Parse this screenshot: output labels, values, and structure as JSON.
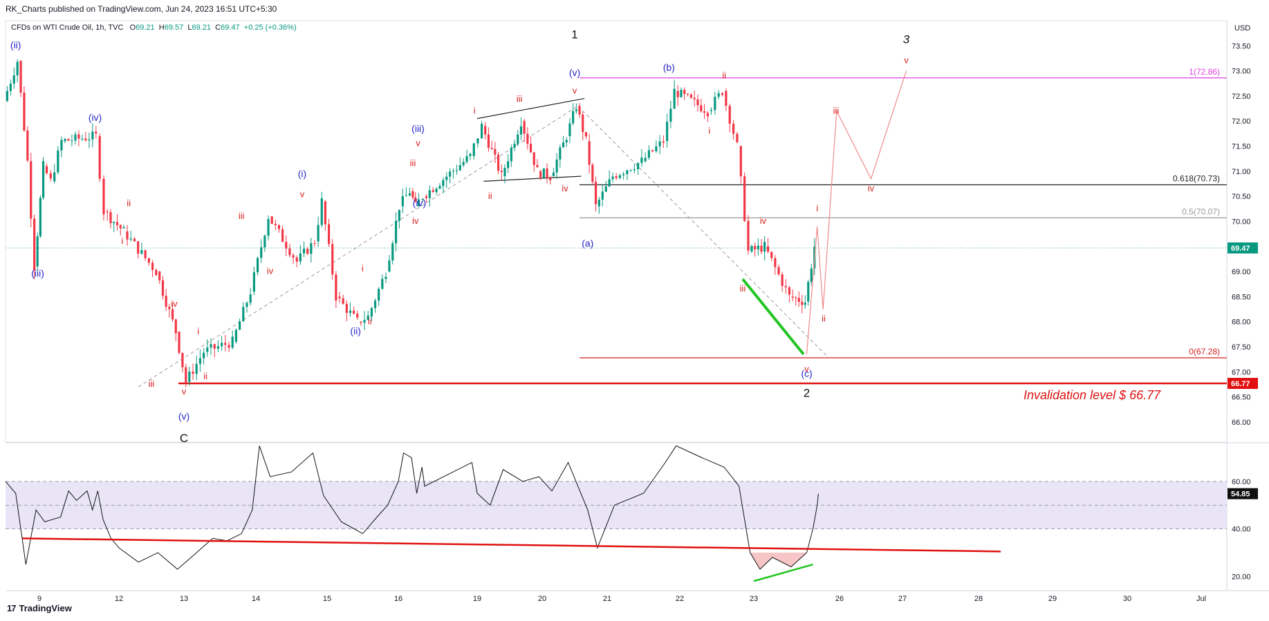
{
  "header": {
    "published": "RK_Charts published on TradingView.com, Jun 24, 2023 16:51 UTC+5:30",
    "symbol": "CFDs on WTI Crude Oil, 1h, TVC",
    "o_label": "O",
    "o_value": "69.21",
    "h_label": "H",
    "h_value": "69.57",
    "l_label": "L",
    "l_value": "69.21",
    "c_label": "C",
    "c_value": "69.47",
    "change": "+0.25 (+0.36%)"
  },
  "footer": {
    "brand": "TradingView",
    "logo_glyph": "17"
  },
  "colors": {
    "up": "#089981",
    "down": "#f23645",
    "wave_blue": "#2424c8",
    "wave_red": "#d81e1e",
    "magenta": "#e040e0",
    "rsi_band": "#e9e5f7",
    "green_line": "#22c422"
  },
  "chart_data": [
    {
      "type": "candlestick",
      "title": "CFDs on WTI Crude Oil, 1h, TVC",
      "currency": "USD",
      "ylim": [
        65.6,
        74.0
      ],
      "y_ticks": [
        "66.00",
        "66.50",
        "67.00",
        "67.50",
        "68.00",
        "68.50",
        "69.00",
        "69.50",
        "70.00",
        "70.50",
        "71.00",
        "71.50",
        "72.00",
        "72.50",
        "73.00",
        "73.50"
      ],
      "x_ticks": [
        "9",
        "12",
        "13",
        "14",
        "15",
        "16",
        "19",
        "20",
        "21",
        "22",
        "23",
        "26",
        "27",
        "28",
        "29",
        "30",
        "Jul"
      ],
      "price_path": [
        [
          8,
          72.4
        ],
        [
          8.4,
          73.2
        ],
        [
          8.7,
          71.2
        ],
        [
          8.9,
          69.1
        ],
        [
          9.2,
          71.1
        ],
        [
          9.5,
          70.8
        ],
        [
          9.9,
          71.6
        ],
        [
          11.2,
          71.7
        ],
        [
          11.5,
          70.2
        ],
        [
          12.1,
          69.8
        ],
        [
          12.6,
          69.0
        ],
        [
          12.9,
          67.8
        ],
        [
          13.05,
          66.8
        ],
        [
          13.3,
          67.4
        ],
        [
          13.7,
          67.6
        ],
        [
          13.95,
          68.6
        ],
        [
          14.2,
          70.1
        ],
        [
          14.6,
          69.2
        ],
        [
          14.85,
          69.6
        ],
        [
          14.95,
          70.4
        ],
        [
          15.15,
          68.5
        ],
        [
          15.45,
          68.0
        ],
        [
          15.6,
          68.1
        ],
        [
          15.85,
          69.0
        ],
        [
          16.1,
          70.3
        ],
        [
          16.5,
          70.6
        ],
        [
          16.7,
          70.3
        ],
        [
          17.0,
          70.5
        ],
        [
          18.8,
          71.3
        ],
        [
          19.1,
          71.9
        ],
        [
          19.4,
          70.9
        ],
        [
          19.7,
          72.0
        ],
        [
          19.95,
          71.0
        ],
        [
          20.15,
          70.9
        ],
        [
          20.4,
          71.7
        ],
        [
          20.55,
          72.3
        ],
        [
          20.7,
          71.6
        ],
        [
          20.85,
          70.3
        ],
        [
          21.1,
          70.9
        ],
        [
          21.5,
          71.2
        ],
        [
          21.8,
          71.6
        ],
        [
          21.95,
          72.6
        ],
        [
          22.4,
          72.2
        ],
        [
          22.6,
          72.6
        ],
        [
          22.8,
          71.5
        ],
        [
          22.95,
          69.4
        ],
        [
          23.2,
          69.5
        ],
        [
          23.6,
          68.5
        ],
        [
          23.85,
          68.4
        ],
        [
          24.0,
          69.5
        ]
      ],
      "levels": [
        {
          "label": "1(72.86)",
          "price": 72.86,
          "color": "#e040e0"
        },
        {
          "label": "0.618(70.73)",
          "price": 70.73,
          "color": "#222222"
        },
        {
          "label": "0.5(70.07)",
          "price": 70.07,
          "color": "#999999"
        },
        {
          "label": "0(67.28)",
          "price": 67.28,
          "color": "#d81e1e"
        },
        {
          "label": "66.77",
          "price": 66.77,
          "color": "#e01010"
        }
      ],
      "last_price": "69.47",
      "annotations": [
        {
          "text": "Invalidation level $ 66.77",
          "price": 66.55,
          "color": "#e01010"
        }
      ],
      "wave_labels": [
        {
          "text": "(ii)",
          "x": 8.3,
          "price": 73.45,
          "color": "blue"
        },
        {
          "text": "(iii)",
          "x": 8.95,
          "price": 68.9,
          "color": "blue"
        },
        {
          "text": "(iv)",
          "x": 11.1,
          "price": 72.0,
          "color": "blue"
        },
        {
          "text": "ii",
          "x": 12.15,
          "price": 70.3,
          "color": "red"
        },
        {
          "text": "i",
          "x": 12.05,
          "price": 69.55,
          "color": "red"
        },
        {
          "text": "iv",
          "x": 12.85,
          "price": 68.3,
          "color": "red"
        },
        {
          "text": "iii",
          "x": 12.5,
          "price": 66.7,
          "color": "red"
        },
        {
          "text": "i",
          "x": 13.2,
          "price": 67.75,
          "color": "red"
        },
        {
          "text": "ii",
          "x": 13.3,
          "price": 66.85,
          "color": "red"
        },
        {
          "text": "v",
          "x": 13.0,
          "price": 66.55,
          "color": "red"
        },
        {
          "text": "(v)",
          "x": 13.0,
          "price": 66.05,
          "color": "blue"
        },
        {
          "text": "C",
          "x": 13.0,
          "price": 65.6,
          "color": "black"
        },
        {
          "text": "iii",
          "x": 13.8,
          "price": 70.05,
          "color": "red"
        },
        {
          "text": "iv",
          "x": 14.2,
          "price": 68.95,
          "color": "red"
        },
        {
          "text": "(i)",
          "x": 14.65,
          "price": 70.88,
          "color": "blue"
        },
        {
          "text": "v",
          "x": 14.65,
          "price": 70.48,
          "color": "red"
        },
        {
          "text": "i",
          "x": 15.5,
          "price": 69.0,
          "color": "red"
        },
        {
          "text": "ii",
          "x": 15.6,
          "price": 67.95,
          "color": "red"
        },
        {
          "text": "(ii)",
          "x": 15.4,
          "price": 67.75,
          "color": "blue"
        },
        {
          "text": "iii",
          "x": 16.55,
          "price": 71.1,
          "color": "red"
        },
        {
          "text": "iv",
          "x": 16.65,
          "price": 69.95,
          "color": "red"
        },
        {
          "text": "(iv)",
          "x": 16.8,
          "price": 70.3,
          "color": "blue"
        },
        {
          "text": "(iii)",
          "x": 16.75,
          "price": 71.78,
          "color": "blue"
        },
        {
          "text": "v",
          "x": 16.75,
          "price": 71.5,
          "color": "red"
        },
        {
          "text": "i",
          "x": 18.9,
          "price": 72.15,
          "color": "red"
        },
        {
          "text": "ii",
          "x": 19.2,
          "price": 70.45,
          "color": "red"
        },
        {
          "text": "iii",
          "x": 19.65,
          "price": 72.38,
          "color": "red"
        },
        {
          "text": "iv",
          "x": 20.35,
          "price": 70.6,
          "color": "red"
        },
        {
          "text": "1",
          "x": 20.5,
          "price": 73.65,
          "color": "black"
        },
        {
          "text": "(v)",
          "x": 20.5,
          "price": 72.9,
          "color": "blue"
        },
        {
          "text": "v",
          "x": 20.5,
          "price": 72.55,
          "color": "red"
        },
        {
          "text": "(a)",
          "x": 20.7,
          "price": 69.5,
          "color": "blue"
        },
        {
          "text": "(b)",
          "x": 21.85,
          "price": 73.0,
          "color": "blue"
        },
        {
          "text": "ii",
          "x": 22.6,
          "price": 72.85,
          "color": "red"
        },
        {
          "text": "i",
          "x": 22.4,
          "price": 71.75,
          "color": "red"
        },
        {
          "text": "iv",
          "x": 23.15,
          "price": 69.95,
          "color": "red"
        },
        {
          "text": "iii",
          "x": 22.85,
          "price": 68.6,
          "color": "red"
        },
        {
          "text": "v",
          "x": 23.85,
          "price": 67.0,
          "color": "red"
        },
        {
          "text": "(c)",
          "x": 23.85,
          "price": 66.9,
          "color": "blue"
        },
        {
          "text": "2",
          "x": 23.85,
          "price": 66.5,
          "color": "black"
        },
        {
          "text": "i",
          "x": 24.1,
          "price": 70.2,
          "color": "red"
        },
        {
          "text": "ii",
          "x": 24.65,
          "price": 68.0,
          "color": "red"
        },
        {
          "text": "iii",
          "x": 25.7,
          "price": 72.15,
          "color": "red"
        },
        {
          "text": "iv",
          "x": 26.5,
          "price": 70.6,
          "color": "red"
        },
        {
          "text": "3",
          "x": 27.05,
          "price": 73.55,
          "color": "black"
        },
        {
          "text": "v",
          "x": 27.05,
          "price": 73.15,
          "color": "red"
        }
      ],
      "projection_path": [
        [
          23.85,
          67.35
        ],
        [
          24.1,
          69.9
        ],
        [
          24.6,
          68.25
        ],
        [
          25.75,
          72.2
        ],
        [
          26.5,
          70.85
        ],
        [
          27.05,
          73.0
        ]
      ]
    },
    {
      "type": "line",
      "title": "RSI",
      "ylim": [
        14,
        76
      ],
      "y_ticks": [
        "20.00",
        "40.00",
        "60.00"
      ],
      "band": [
        40,
        60
      ],
      "midline": 50,
      "last_value": "54.85",
      "values": [
        [
          8,
          60
        ],
        [
          8.3,
          55
        ],
        [
          8.6,
          25
        ],
        [
          8.9,
          48
        ],
        [
          9.2,
          43
        ],
        [
          9.5,
          44
        ],
        [
          9.8,
          45
        ],
        [
          10.1,
          56
        ],
        [
          10.4,
          52
        ],
        [
          10.8,
          56
        ],
        [
          11.0,
          48
        ],
        [
          11.2,
          56
        ],
        [
          11.4,
          44
        ],
        [
          11.7,
          36
        ],
        [
          12.0,
          32
        ],
        [
          12.3,
          26
        ],
        [
          12.6,
          30
        ],
        [
          12.9,
          23
        ],
        [
          13.1,
          28
        ],
        [
          13.4,
          36
        ],
        [
          13.6,
          35
        ],
        [
          13.8,
          38
        ],
        [
          13.95,
          48
        ],
        [
          14.05,
          75
        ],
        [
          14.2,
          62
        ],
        [
          14.5,
          64
        ],
        [
          14.8,
          72
        ],
        [
          14.95,
          54
        ],
        [
          15.2,
          43
        ],
        [
          15.5,
          38
        ],
        [
          15.7,
          45
        ],
        [
          15.85,
          50
        ],
        [
          16.0,
          60
        ],
        [
          16.2,
          72
        ],
        [
          16.5,
          70
        ],
        [
          16.7,
          55
        ],
        [
          16.9,
          66
        ],
        [
          17.0,
          58
        ],
        [
          18.8,
          68
        ],
        [
          19.0,
          55
        ],
        [
          19.2,
          50
        ],
        [
          19.4,
          65
        ],
        [
          19.7,
          60
        ],
        [
          19.95,
          62
        ],
        [
          20.15,
          56
        ],
        [
          20.4,
          68
        ],
        [
          20.55,
          58
        ],
        [
          20.7,
          48
        ],
        [
          20.85,
          32
        ],
        [
          21.1,
          50
        ],
        [
          21.5,
          55
        ],
        [
          21.8,
          68
        ],
        [
          21.95,
          75
        ],
        [
          22.3,
          70
        ],
        [
          22.6,
          66
        ],
        [
          22.8,
          58
        ],
        [
          22.95,
          30
        ],
        [
          23.1,
          23
        ],
        [
          23.3,
          28
        ],
        [
          23.6,
          24
        ],
        [
          23.85,
          30
        ],
        [
          23.95,
          40
        ],
        [
          24.1,
          50
        ],
        [
          24.2,
          54.85
        ]
      ],
      "trendlines": [
        {
          "from": [
            8.5,
            36
          ],
          "to": [
            28.3,
            30.5
          ],
          "color": "#e01010"
        },
        {
          "from": [
            23.0,
            18
          ],
          "to": [
            23.95,
            25
          ],
          "color": "#22c422"
        }
      ]
    }
  ]
}
